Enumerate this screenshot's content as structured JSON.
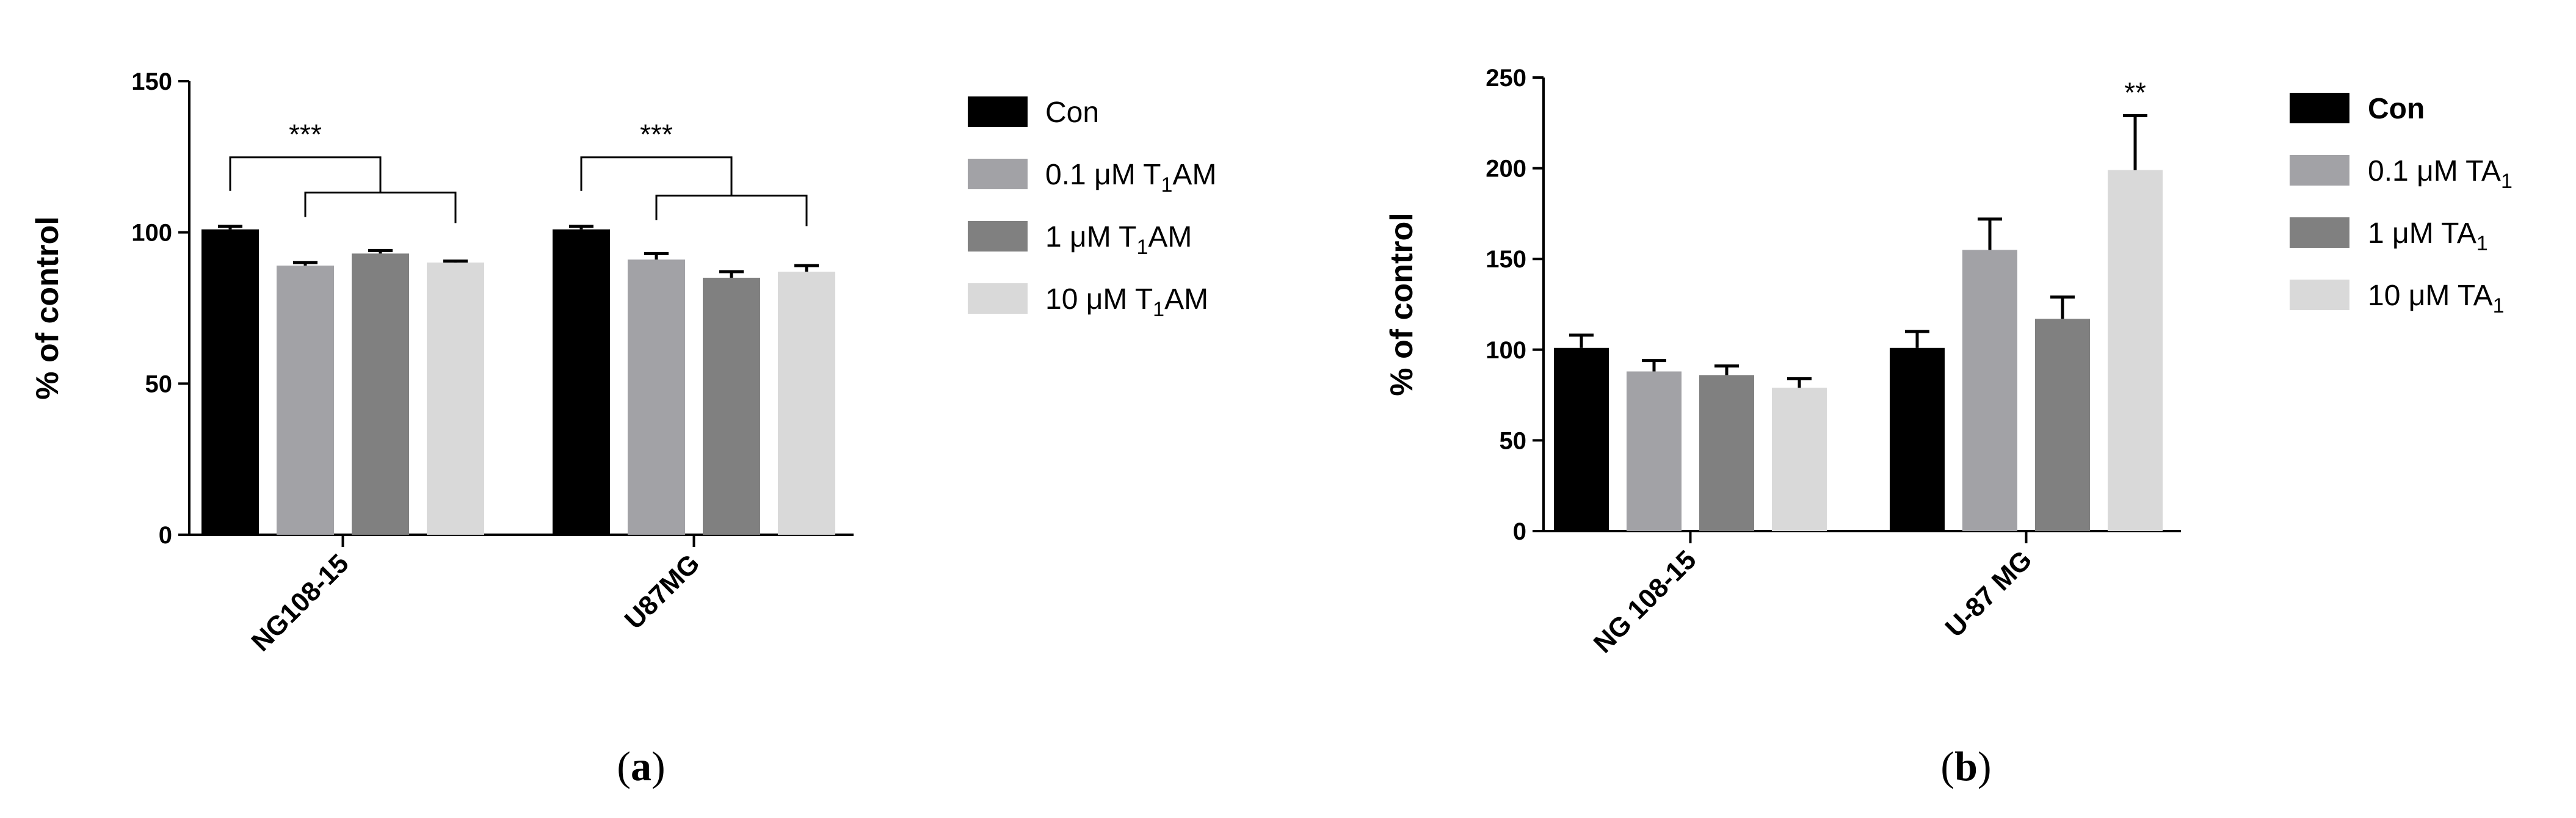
{
  "panels": [
    {
      "label_open": "(",
      "label_letter": "a",
      "label_close": ")"
    },
    {
      "label_open": "(",
      "label_letter": "b",
      "label_close": ")"
    }
  ],
  "colors": {
    "Con": "#000000",
    "low": "#a2a2a6",
    "mid": "#808080",
    "high": "#d9d9d9"
  },
  "chart_data": [
    {
      "type": "bar",
      "title": "",
      "xlabel": "",
      "ylabel": "% of control",
      "ylim": [
        0,
        150
      ],
      "yticks": [
        0,
        50,
        100,
        150
      ],
      "categories": [
        "NG108-15",
        "U87MG"
      ],
      "legend_position": "right",
      "series": [
        {
          "name": {
            "pre": "Con",
            "sub": "",
            "post": ""
          },
          "values": [
            101,
            101
          ],
          "errors": [
            1,
            1
          ]
        },
        {
          "name": {
            "pre": "0.1 μM T",
            "sub": "1",
            "post": "AM"
          },
          "values": [
            89,
            91
          ],
          "errors": [
            1,
            2
          ]
        },
        {
          "name": {
            "pre": "1 μM T",
            "sub": "1",
            "post": "AM"
          },
          "values": [
            93,
            85
          ],
          "errors": [
            1,
            2
          ]
        },
        {
          "name": {
            "pre": "10 μM T",
            "sub": "1",
            "post": "AM"
          },
          "values": [
            90,
            87
          ],
          "errors": [
            0.5,
            2
          ]
        }
      ],
      "annotations": [
        {
          "text": "***",
          "category": 0
        },
        {
          "text": "***",
          "category": 1
        }
      ]
    },
    {
      "type": "bar",
      "title": "",
      "xlabel": "",
      "ylabel": "% of control",
      "ylim": [
        0,
        250
      ],
      "yticks": [
        0,
        50,
        100,
        150,
        200,
        250
      ],
      "categories": [
        "NG 108-15",
        "U-87 MG"
      ],
      "legend_position": "right",
      "series": [
        {
          "name": {
            "pre": "Con",
            "sub": "",
            "post": ""
          },
          "values": [
            101,
            101
          ],
          "errors": [
            7,
            9
          ]
        },
        {
          "name": {
            "pre": "0.1 μM TA",
            "sub": "1",
            "post": ""
          },
          "values": [
            88,
            155
          ],
          "errors": [
            6,
            17
          ]
        },
        {
          "name": {
            "pre": "1 μM TA",
            "sub": "1",
            "post": ""
          },
          "values": [
            86,
            117
          ],
          "errors": [
            5,
            12
          ]
        },
        {
          "name": {
            "pre": "10 μM TA",
            "sub": "1",
            "post": ""
          },
          "values": [
            79,
            199
          ],
          "errors": [
            5,
            30
          ]
        }
      ],
      "annotations": [
        {
          "text": "**",
          "category": 1,
          "series": 3
        }
      ]
    }
  ]
}
